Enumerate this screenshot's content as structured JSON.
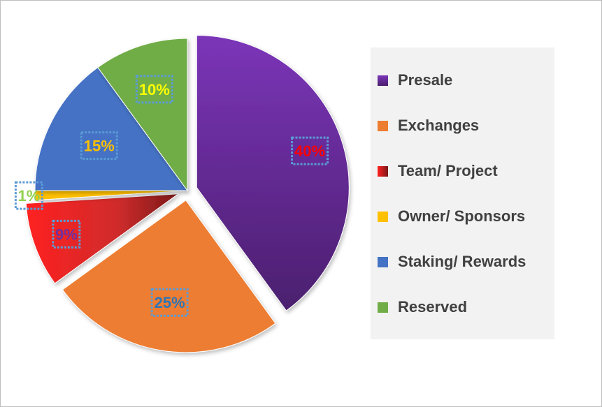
{
  "chart_data": {
    "type": "pie",
    "title": "",
    "slices": [
      {
        "label": "Presale",
        "value": 40,
        "display": "40%",
        "color": "#7030a0",
        "label_color": "#ff0000"
      },
      {
        "label": "Exchanges",
        "value": 25,
        "display": "25%",
        "color": "#ed7d31",
        "label_color": "#2e75b6"
      },
      {
        "label": "Team/ Project",
        "value": 9,
        "display": "9%",
        "color": "#e03030",
        "label_color": "#7030a0"
      },
      {
        "label": "Owner/ Sponsors",
        "value": 1,
        "display": "1%",
        "color": "#ffc000",
        "label_color": "#92d050"
      },
      {
        "label": "Staking/ Rewards",
        "value": 15,
        "display": "15%",
        "color": "#4472c4",
        "label_color": "#ffc000"
      },
      {
        "label": "Reserved",
        "value": 10,
        "display": "10%",
        "color": "#70ad47",
        "label_color": "#ffff00"
      }
    ],
    "exploded": [
      "Presale",
      "Exchanges",
      "Team/ Project"
    ],
    "legend_position": "right",
    "data_label_border_color": "#5b9bd5"
  }
}
